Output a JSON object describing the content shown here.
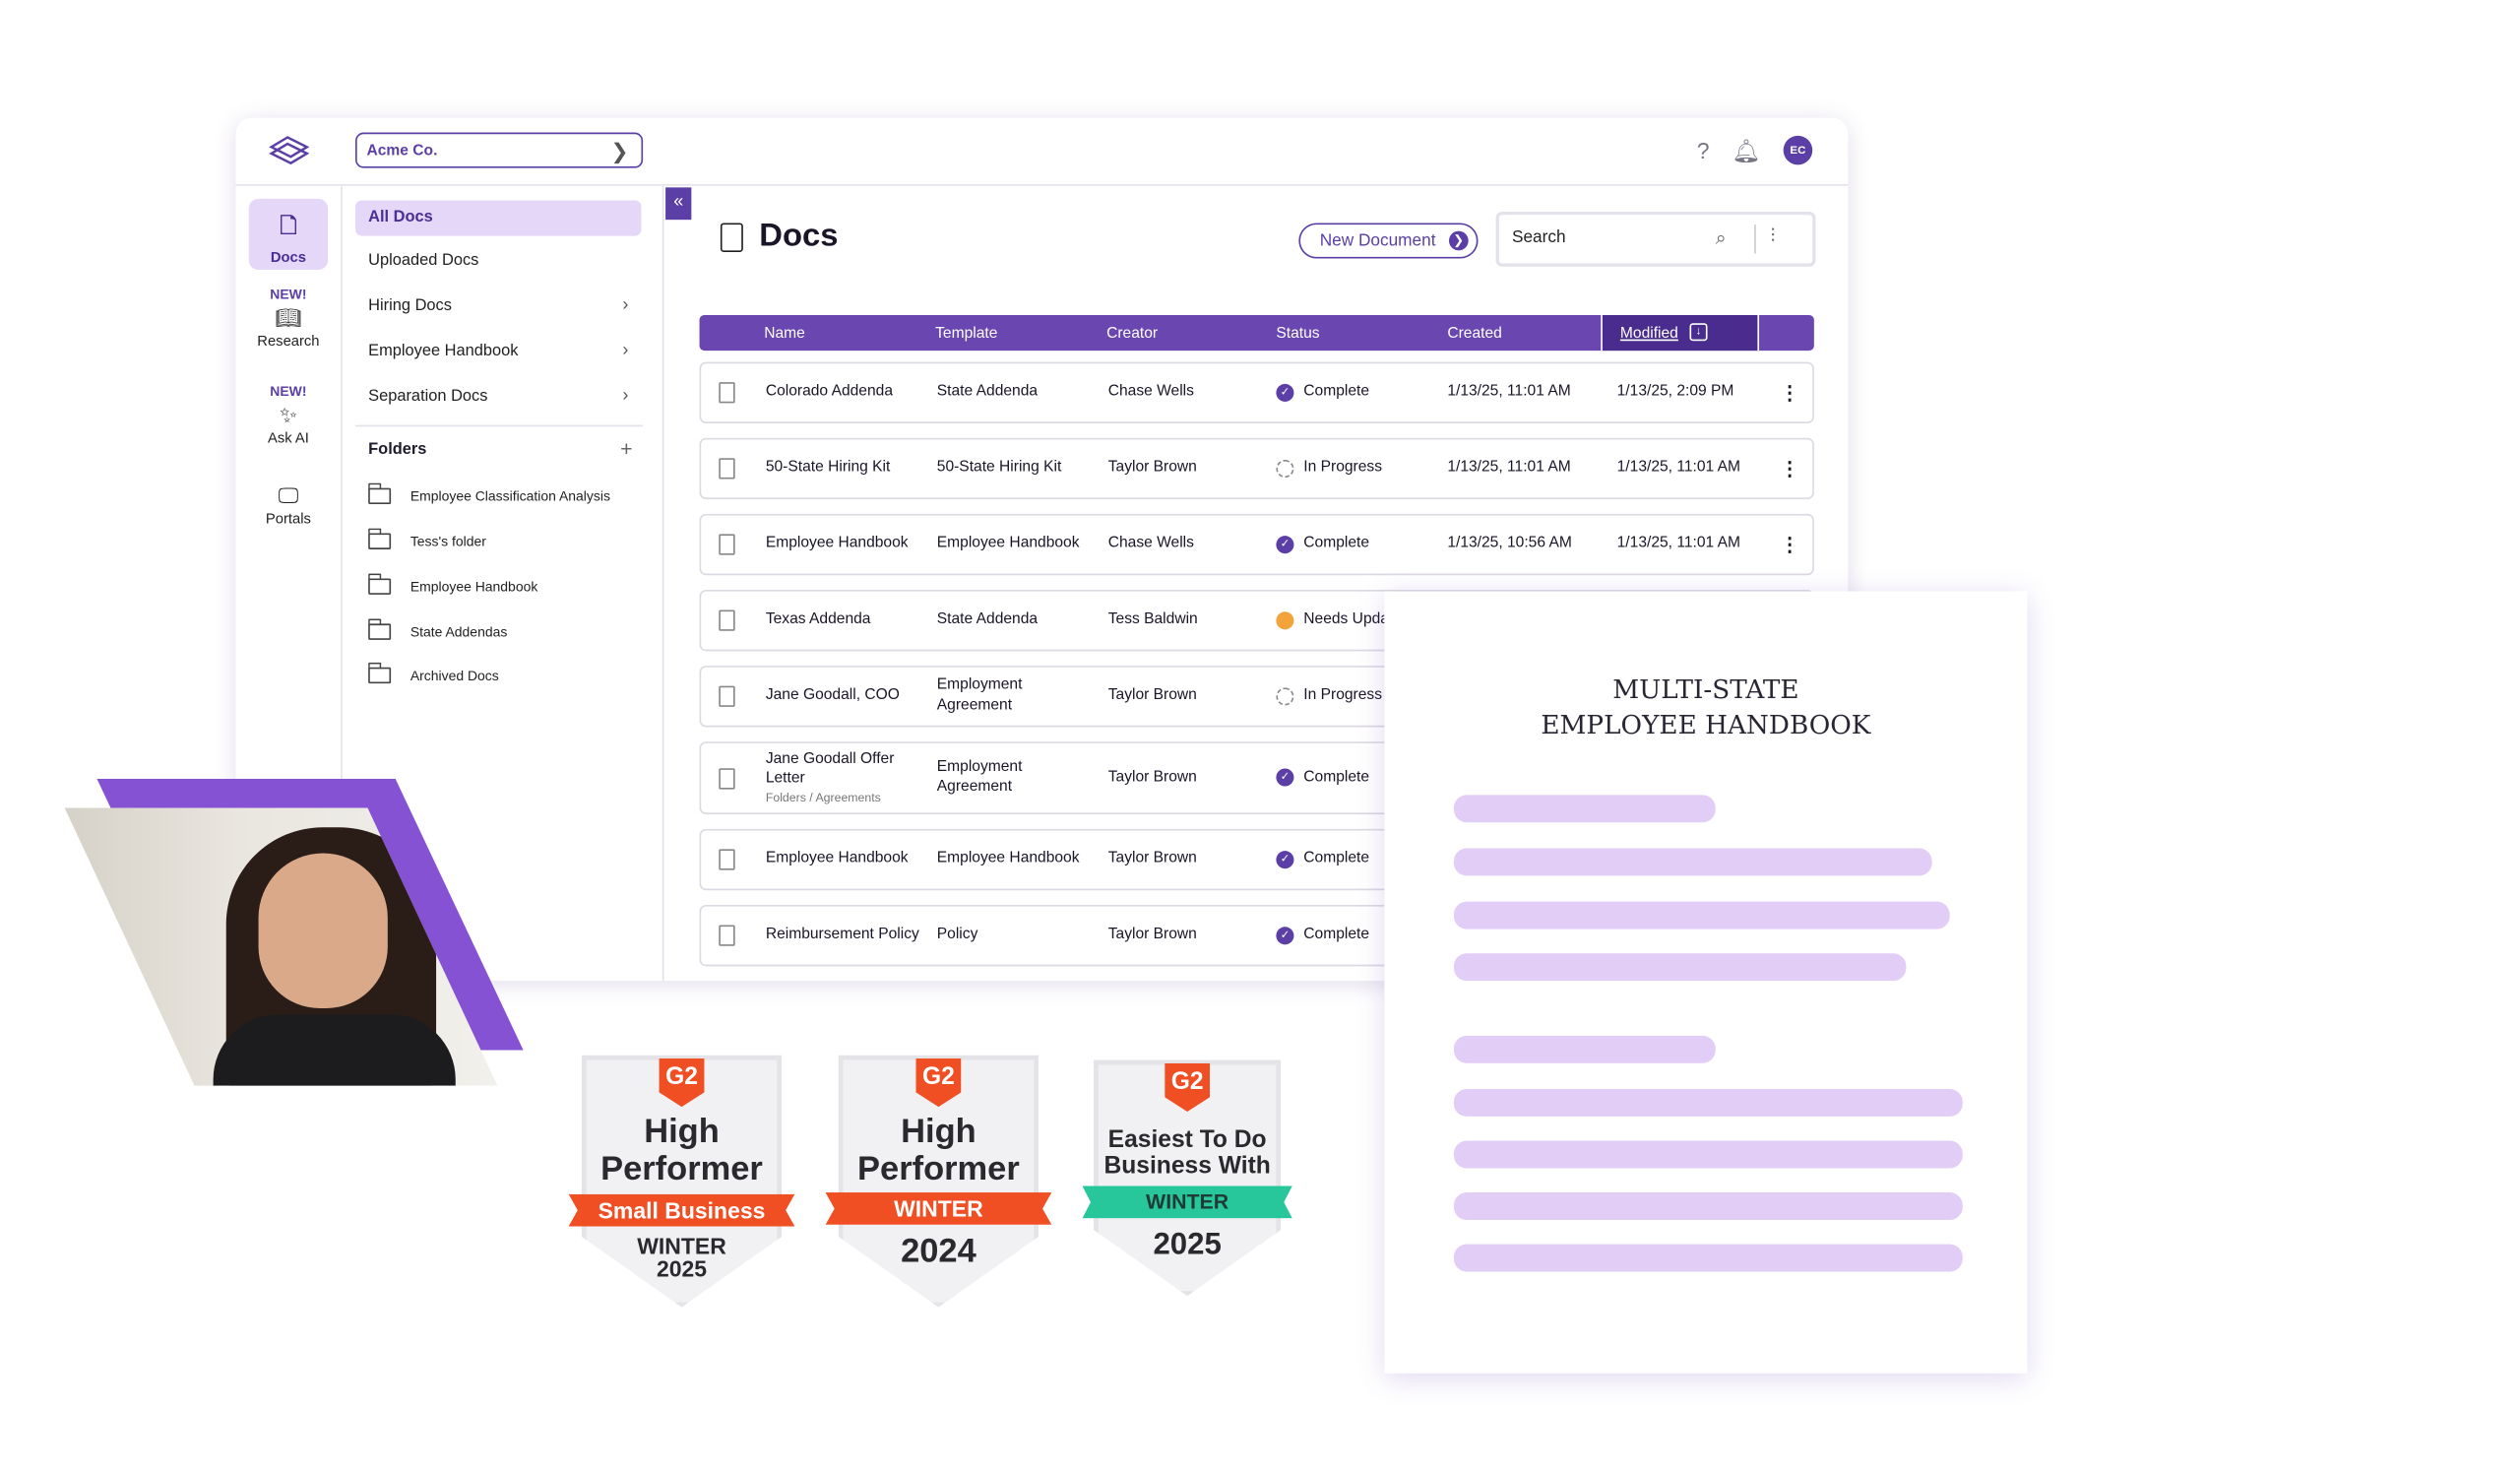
{
  "topbar": {
    "company": "Acme Co.",
    "avatar_initials": "EC"
  },
  "rail": [
    {
      "label": "Docs",
      "icon": "document-icon",
      "new": ""
    },
    {
      "label": "Research",
      "icon": "book-icon",
      "new": "NEW!"
    },
    {
      "label": "Ask AI",
      "icon": "sparkle-icon",
      "new": "NEW!"
    },
    {
      "label": "Portals",
      "icon": "portal-icon",
      "new": ""
    }
  ],
  "nav": {
    "items": [
      {
        "label": "All Docs"
      },
      {
        "label": "Uploaded Docs"
      },
      {
        "label": "Hiring Docs"
      },
      {
        "label": "Employee Handbook"
      },
      {
        "label": "Separation Docs"
      }
    ],
    "folders_header": "Folders",
    "folders": [
      "Employee Classification Analysis",
      "Tess's folder",
      "Employee Handbook",
      "State Addendas",
      "Archived Docs"
    ]
  },
  "main": {
    "title": "Docs",
    "new_document": "New Document",
    "search_placeholder": "Search",
    "columns": [
      "Name",
      "Template",
      "Creator",
      "Status",
      "Created",
      "Modified"
    ],
    "rows": [
      {
        "name": "Colorado Addenda",
        "sub": "",
        "template": "State Addenda",
        "creator": "Chase Wells",
        "status": "Complete",
        "created": "1/13/25, 11:01 AM",
        "modified": "1/13/25, 2:09 PM"
      },
      {
        "name": "50-State Hiring Kit",
        "sub": "",
        "template": "50-State Hiring Kit",
        "creator": "Taylor Brown",
        "status": "In Progress",
        "created": "1/13/25, 11:01 AM",
        "modified": "1/13/25, 11:01 AM"
      },
      {
        "name": "Employee Handbook",
        "sub": "",
        "template": "Employee Handbook",
        "creator": "Chase Wells",
        "status": "Complete",
        "created": "1/13/25, 10:56 AM",
        "modified": "1/13/25, 11:01 AM"
      },
      {
        "name": "Texas Addenda",
        "sub": "",
        "template": "State Addenda",
        "creator": "Tess Baldwin",
        "status": "Needs Upda",
        "created": "",
        "modified": ""
      },
      {
        "name": "Jane Goodall, COO",
        "sub": "",
        "template": "Employment Agreement",
        "creator": "Taylor Brown",
        "status": "In Progress",
        "created": "",
        "modified": ""
      },
      {
        "name": "Jane Goodall Offer Letter",
        "sub": "Folders / Agreements",
        "template": "Employment Agreement",
        "creator": "Taylor Brown",
        "status": "Complete",
        "created": "",
        "modified": ""
      },
      {
        "name": "Employee Handbook",
        "sub": "",
        "template": "Employee Handbook",
        "creator": "Taylor Brown",
        "status": "Complete",
        "created": "",
        "modified": ""
      },
      {
        "name": "Reimbursement Policy",
        "sub": "",
        "template": "Policy",
        "creator": "Taylor Brown",
        "status": "Complete",
        "created": "",
        "modified": ""
      }
    ]
  },
  "handbook": {
    "title_line1": "MULTI-STATE",
    "title_line2": "EMPLOYEE HANDBOOK"
  },
  "badges": [
    {
      "logo": "G2",
      "title_line1": "High",
      "title_line2": "Performer",
      "ribbon": "Small Business",
      "ribbon_color": "#f04e23",
      "sub_line1": "WINTER",
      "sub_line2": "2025"
    },
    {
      "logo": "G2",
      "title_line1": "High",
      "title_line2": "Performer",
      "ribbon": "WINTER",
      "ribbon_color": "#f04e23",
      "sub_line1": "2024",
      "sub_line2": ""
    },
    {
      "logo": "G2",
      "title_line1": "Easiest To Do",
      "title_line2": "Business With",
      "ribbon": "WINTER",
      "ribbon_color": "#27c69b",
      "sub_line1": "2025",
      "sub_line2": ""
    }
  ],
  "colors": {
    "brand_purple": "#5b3fa6",
    "header_purple": "#6a46b0",
    "complete": "#5b3fa6",
    "needs_update": "#f2a33a",
    "g2_red": "#f04e23",
    "g2_teal": "#27c69b"
  }
}
